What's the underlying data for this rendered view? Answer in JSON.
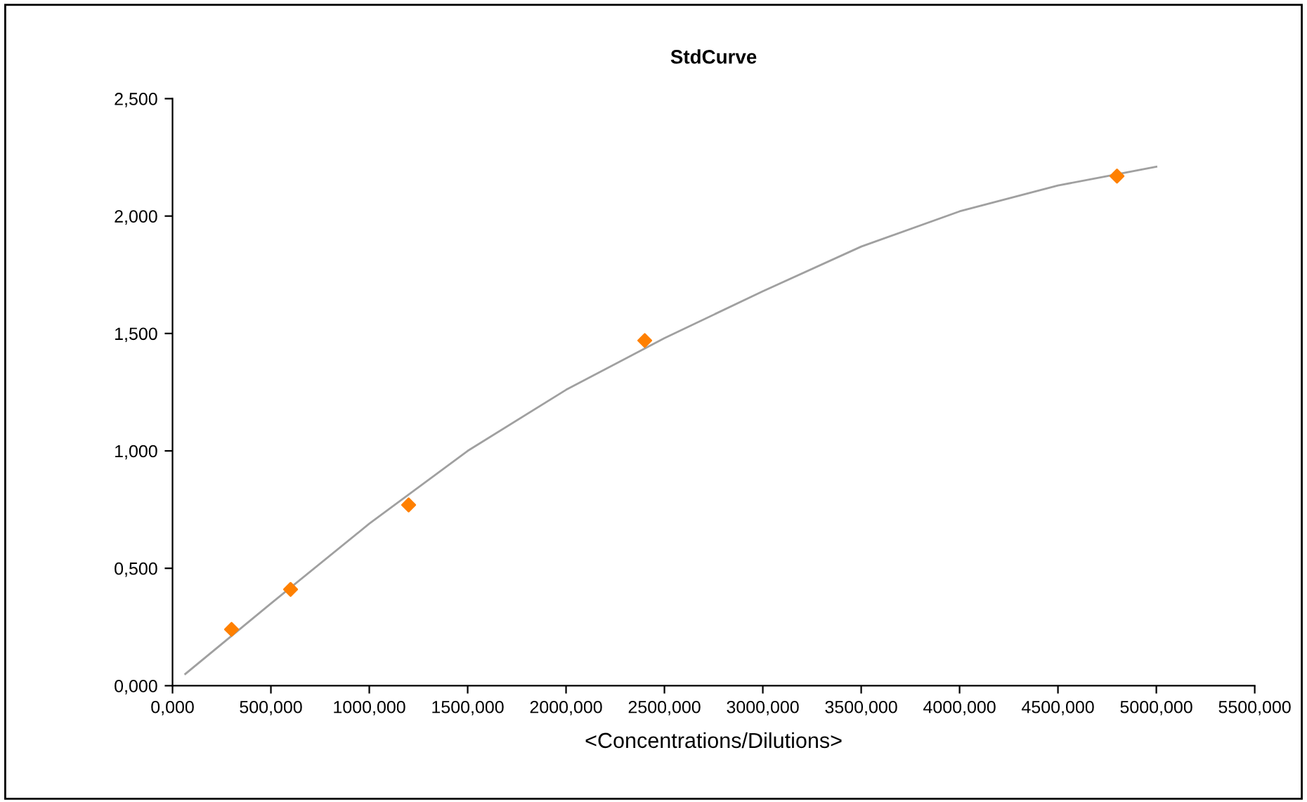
{
  "chart_data": {
    "type": "scatter",
    "title": "StdCurve",
    "xlabel": "<Concentrations/Dilutions>",
    "series": [
      {
        "type": "line",
        "color": "#a0a0a0",
        "marker": "none",
        "x": [
          65,
          500,
          1000,
          1500,
          2000,
          2500,
          3000,
          3500,
          4000,
          4500,
          5000
        ],
        "values": [
          0.05,
          0.35,
          0.69,
          1.0,
          1.26,
          1.48,
          1.68,
          1.87,
          2.02,
          2.13,
          2.21
        ]
      },
      {
        "color": "#ff8000",
        "marker": "diamond",
        "x": [
          300,
          600,
          1200,
          2400,
          4800
        ],
        "values": [
          0.24,
          0.41,
          0.77,
          1.47,
          2.17
        ]
      }
    ],
    "xlim": [
      0,
      5500
    ],
    "xticks": [
      {
        "value": 0,
        "label": "0,000"
      },
      {
        "value": 500,
        "label": "500,000"
      },
      {
        "value": 1000,
        "label": "1000,000"
      },
      {
        "value": 1500,
        "label": "1500,000"
      },
      {
        "value": 2000,
        "label": "2000,000"
      },
      {
        "value": 2500,
        "label": "2500,000"
      },
      {
        "value": 3000,
        "label": "3000,000"
      },
      {
        "value": 3500,
        "label": "3500,000"
      },
      {
        "value": 4000,
        "label": "4000,000"
      },
      {
        "value": 4500,
        "label": "4500,000"
      },
      {
        "value": 5000,
        "label": "5000,000"
      },
      {
        "value": 5500,
        "label": "5500,000"
      }
    ],
    "ylim": [
      0,
      2.5
    ],
    "yticks": [
      {
        "value": 0,
        "label": "0,000"
      },
      {
        "value": 0.5,
        "label": "0,500"
      },
      {
        "value": 1.0,
        "label": "1,000"
      },
      {
        "value": 1.5,
        "label": "1,500"
      },
      {
        "value": 2.0,
        "label": "2,000"
      },
      {
        "value": 2.5,
        "label": "2,500"
      }
    ],
    "grid": false,
    "legend": false
  }
}
